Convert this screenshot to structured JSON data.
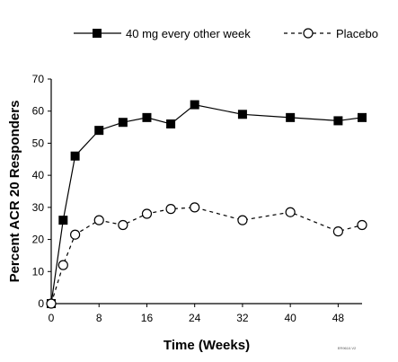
{
  "chart_data": {
    "type": "line",
    "title": "",
    "xlabel": "Time (Weeks)",
    "ylabel": "Percent ACR 20 Responders",
    "xlim": [
      0,
      52
    ],
    "ylim": [
      0,
      70
    ],
    "xticks": [
      0,
      8,
      16,
      24,
      32,
      40,
      48
    ],
    "yticks": [
      0,
      10,
      20,
      30,
      40,
      50,
      60,
      70
    ],
    "grid": false,
    "legend_position": "top-right",
    "footnote": "ER9610.V2",
    "series": [
      {
        "name": "40 mg every other week",
        "marker": "filled-square",
        "line_style": "solid",
        "color": "#000000",
        "x": [
          0,
          2,
          4,
          8,
          12,
          16,
          20,
          24,
          32,
          40,
          48,
          52
        ],
        "y": [
          0,
          26,
          46,
          54,
          56.5,
          58,
          56,
          62,
          59,
          58,
          57,
          58
        ]
      },
      {
        "name": "Placebo",
        "marker": "open-circle",
        "line_style": "dashed",
        "color": "#000000",
        "x": [
          0,
          2,
          4,
          8,
          12,
          16,
          20,
          24,
          32,
          40,
          48,
          52
        ],
        "y": [
          0,
          12,
          21.5,
          26,
          24.5,
          28,
          29.5,
          30,
          26,
          28.5,
          22.5,
          24.5
        ]
      }
    ]
  }
}
